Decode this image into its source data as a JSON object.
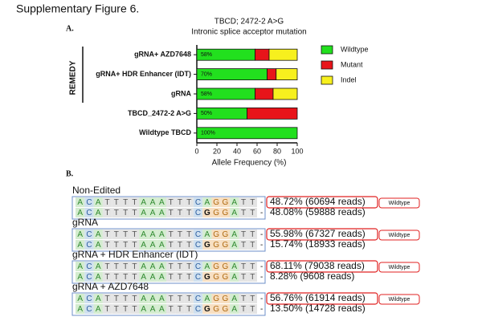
{
  "title": "Supplementary Figure 6.",
  "panel_a_label": "A.",
  "chart_data": {
    "type": "bar",
    "orientation": "horizontal",
    "stacked": true,
    "title": "TBCD; 2472-2 A>G",
    "subtitle": "Intronic splice acceptor mutation",
    "group_label": "REMEDY",
    "categories": [
      "gRNA+ AZD7648",
      "gRNA+ HDR Enhancer (IDT)",
      "gRNA",
      "TBCD_2472-2 A>G",
      "Wildtype TBCD"
    ],
    "series": [
      {
        "name": "Wildtype",
        "color": "#22e01e",
        "values": [
          58,
          70,
          58,
          50,
          100
        ],
        "value_labels": [
          "58%",
          "70%",
          "58%",
          "50%",
          "100%"
        ]
      },
      {
        "name": "Mutant",
        "color": "#e8141a",
        "values": [
          14,
          9,
          18,
          50,
          0
        ]
      },
      {
        "name": "Indel",
        "color": "#f7f01e",
        "values": [
          28,
          21,
          24,
          0,
          0
        ]
      }
    ],
    "xlim": [
      0,
      100
    ],
    "xticks": [
      0,
      20,
      40,
      60,
      80,
      100
    ],
    "xlabel": "Allele Frequency (%)",
    "legend": "right"
  },
  "panel_b": {
    "label": "B.",
    "sections": [
      {
        "label": "Non-Edited",
        "tag": "Wildtype",
        "rows": [
          {
            "sequence": "ACATTTTAAATTTCAGGATT-",
            "reads": "48.72% (60694 reads)"
          },
          {
            "sequence": "ACATTTTAAATTTCGGGATT-",
            "reads": "48.08% (59888 reads)"
          }
        ]
      },
      {
        "label": "gRNA",
        "tag": "Wildtype",
        "rows": [
          {
            "sequence": "ACATTTTAAATTTCAGGATT-",
            "reads": "55.98% (67327 reads)"
          },
          {
            "sequence": "ACATTTTAAATTTCGGGATT-",
            "reads": "15.74% (18933 reads)"
          }
        ]
      },
      {
        "label": "gRNA + HDR Enhancer (IDT)",
        "tag": "Wildtype",
        "rows": [
          {
            "sequence": "ACATTTTAAATTTCAGGATT-",
            "reads": "68.11% (79038 reads)"
          },
          {
            "sequence": "ACATTTTAAATTTCGGGATT-",
            "reads": "8.28% (9608 reads)"
          }
        ]
      },
      {
        "label": "gRNA + AZD7648",
        "tag": "Wildtype",
        "rows": [
          {
            "sequence": "ACATTTTAAATTTCAGGATT-",
            "reads": "56.76% (61914 reads)"
          },
          {
            "sequence": "ACATTTTAAATTTCGGGATT-",
            "reads": "13.50% (14728 reads)"
          }
        ]
      }
    ]
  }
}
